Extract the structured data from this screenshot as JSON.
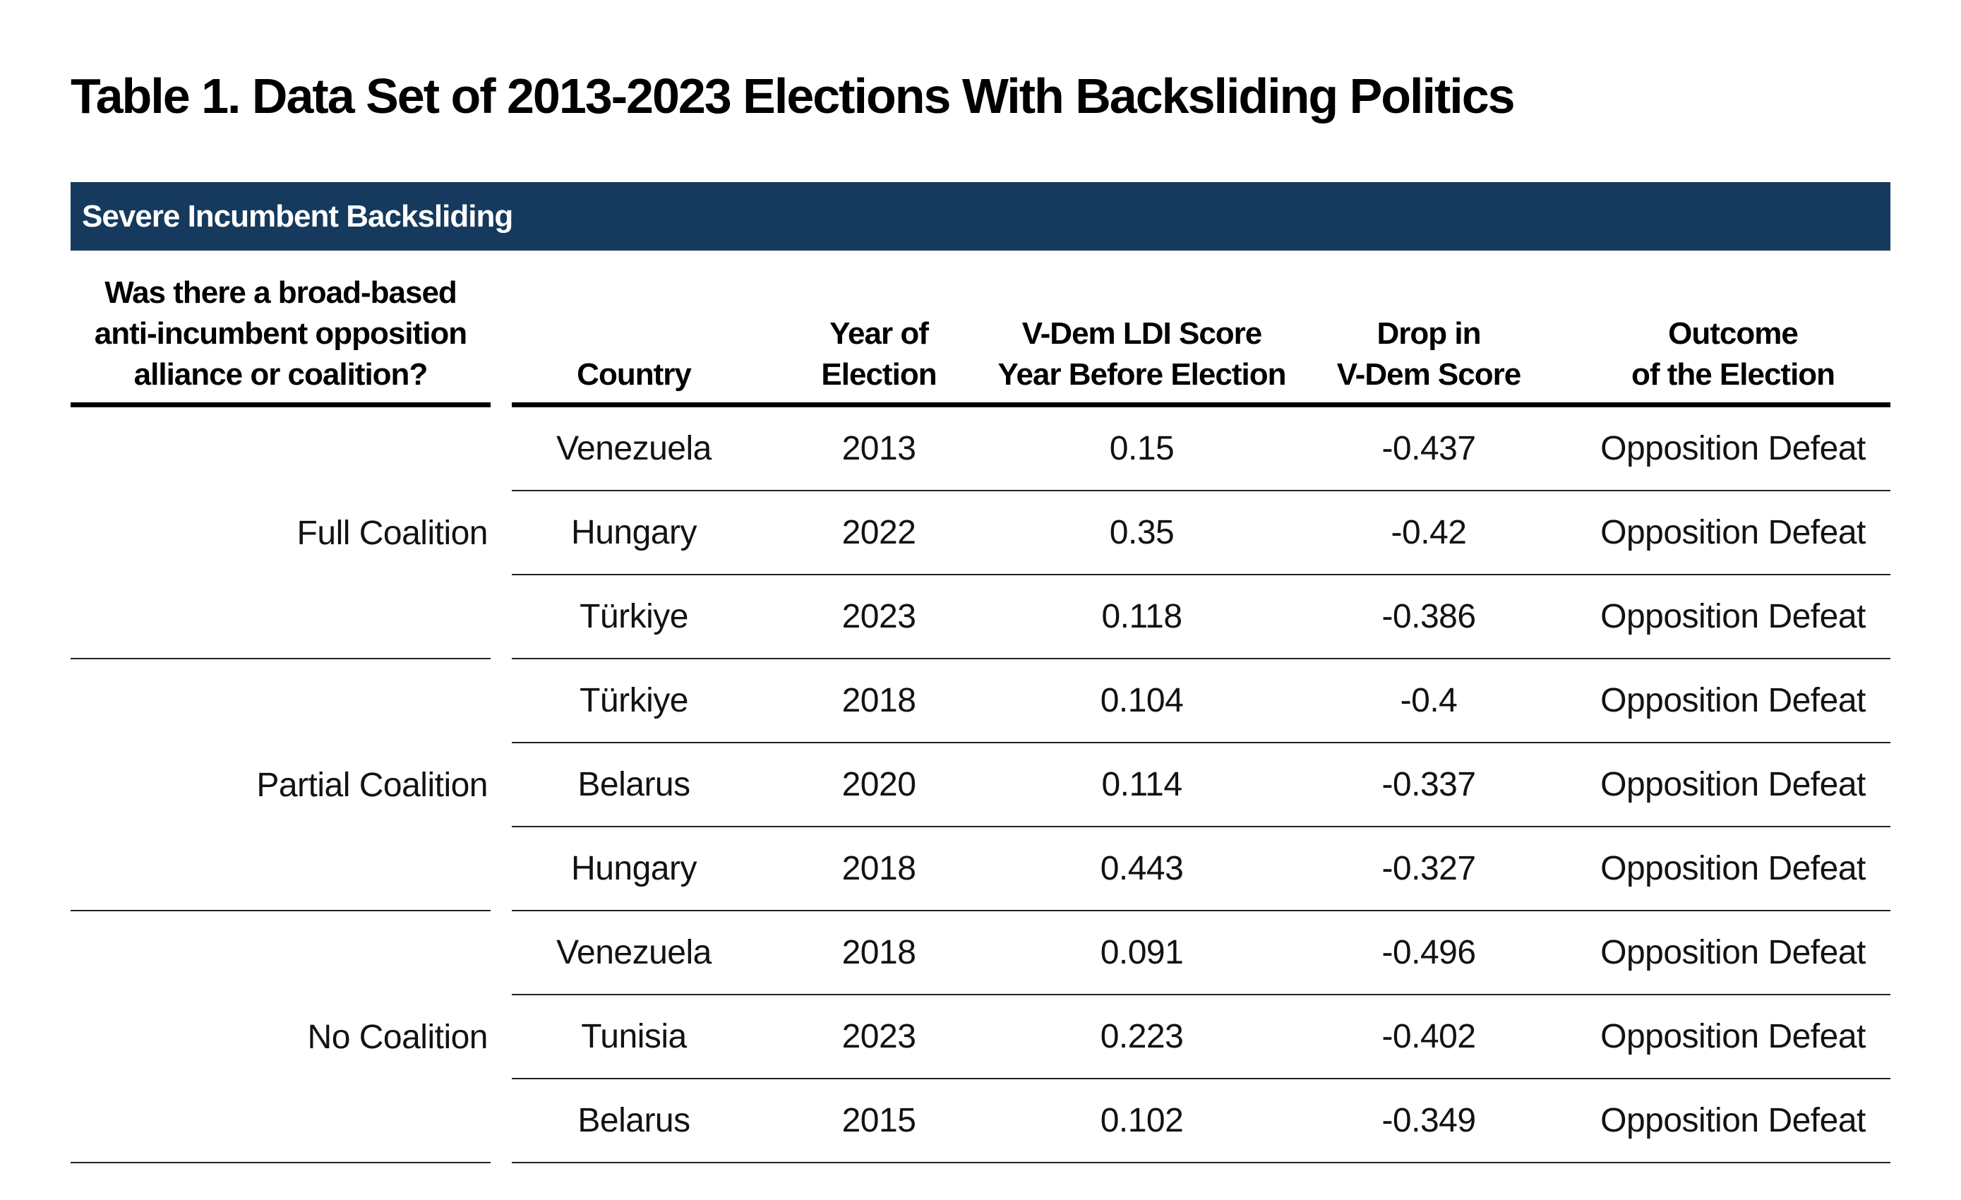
{
  "title": "Table 1. Data Set of 2013-2023 Elections With Backsliding Politics",
  "section_header": "Severe Incumbent Backsliding",
  "colors": {
    "accent_navy": "#153A5E",
    "rule_black": "#000000",
    "row_line": "#222222"
  },
  "columns": {
    "question": [
      "Was there a broad-based",
      "anti-incumbent opposition",
      "alliance or coalition?"
    ],
    "country": "Country",
    "year": [
      "Year of",
      "Election"
    ],
    "ldi": [
      "V-Dem LDI Score",
      "Year Before Election"
    ],
    "drop": [
      "Drop in",
      "V-Dem Score"
    ],
    "outcome": [
      "Outcome",
      "of the Election"
    ]
  },
  "groups": [
    {
      "label": "Full Coalition",
      "rows": [
        {
          "country": "Venezuela",
          "year": "2013",
          "ldi": "0.15",
          "drop": "-0.437",
          "outcome": "Opposition Defeat"
        },
        {
          "country": "Hungary",
          "year": "2022",
          "ldi": "0.35",
          "drop": "-0.42",
          "outcome": "Opposition Defeat"
        },
        {
          "country": "Türkiye",
          "year": "2023",
          "ldi": "0.118",
          "drop": "-0.386",
          "outcome": "Opposition Defeat"
        }
      ]
    },
    {
      "label": "Partial Coalition",
      "rows": [
        {
          "country": "Türkiye",
          "year": "2018",
          "ldi": "0.104",
          "drop": "-0.4",
          "outcome": "Opposition Defeat"
        },
        {
          "country": "Belarus",
          "year": "2020",
          "ldi": "0.114",
          "drop": "-0.337",
          "outcome": "Opposition Defeat"
        },
        {
          "country": "Hungary",
          "year": "2018",
          "ldi": "0.443",
          "drop": "-0.327",
          "outcome": "Opposition Defeat"
        }
      ]
    },
    {
      "label": "No Coalition",
      "rows": [
        {
          "country": "Venezuela",
          "year": "2018",
          "ldi": "0.091",
          "drop": "-0.496",
          "outcome": "Opposition Defeat"
        },
        {
          "country": "Tunisia",
          "year": "2023",
          "ldi": "0.223",
          "drop": "-0.402",
          "outcome": "Opposition Defeat"
        },
        {
          "country": "Belarus",
          "year": "2015",
          "ldi": "0.102",
          "drop": "-0.349",
          "outcome": "Opposition Defeat"
        }
      ]
    }
  ]
}
